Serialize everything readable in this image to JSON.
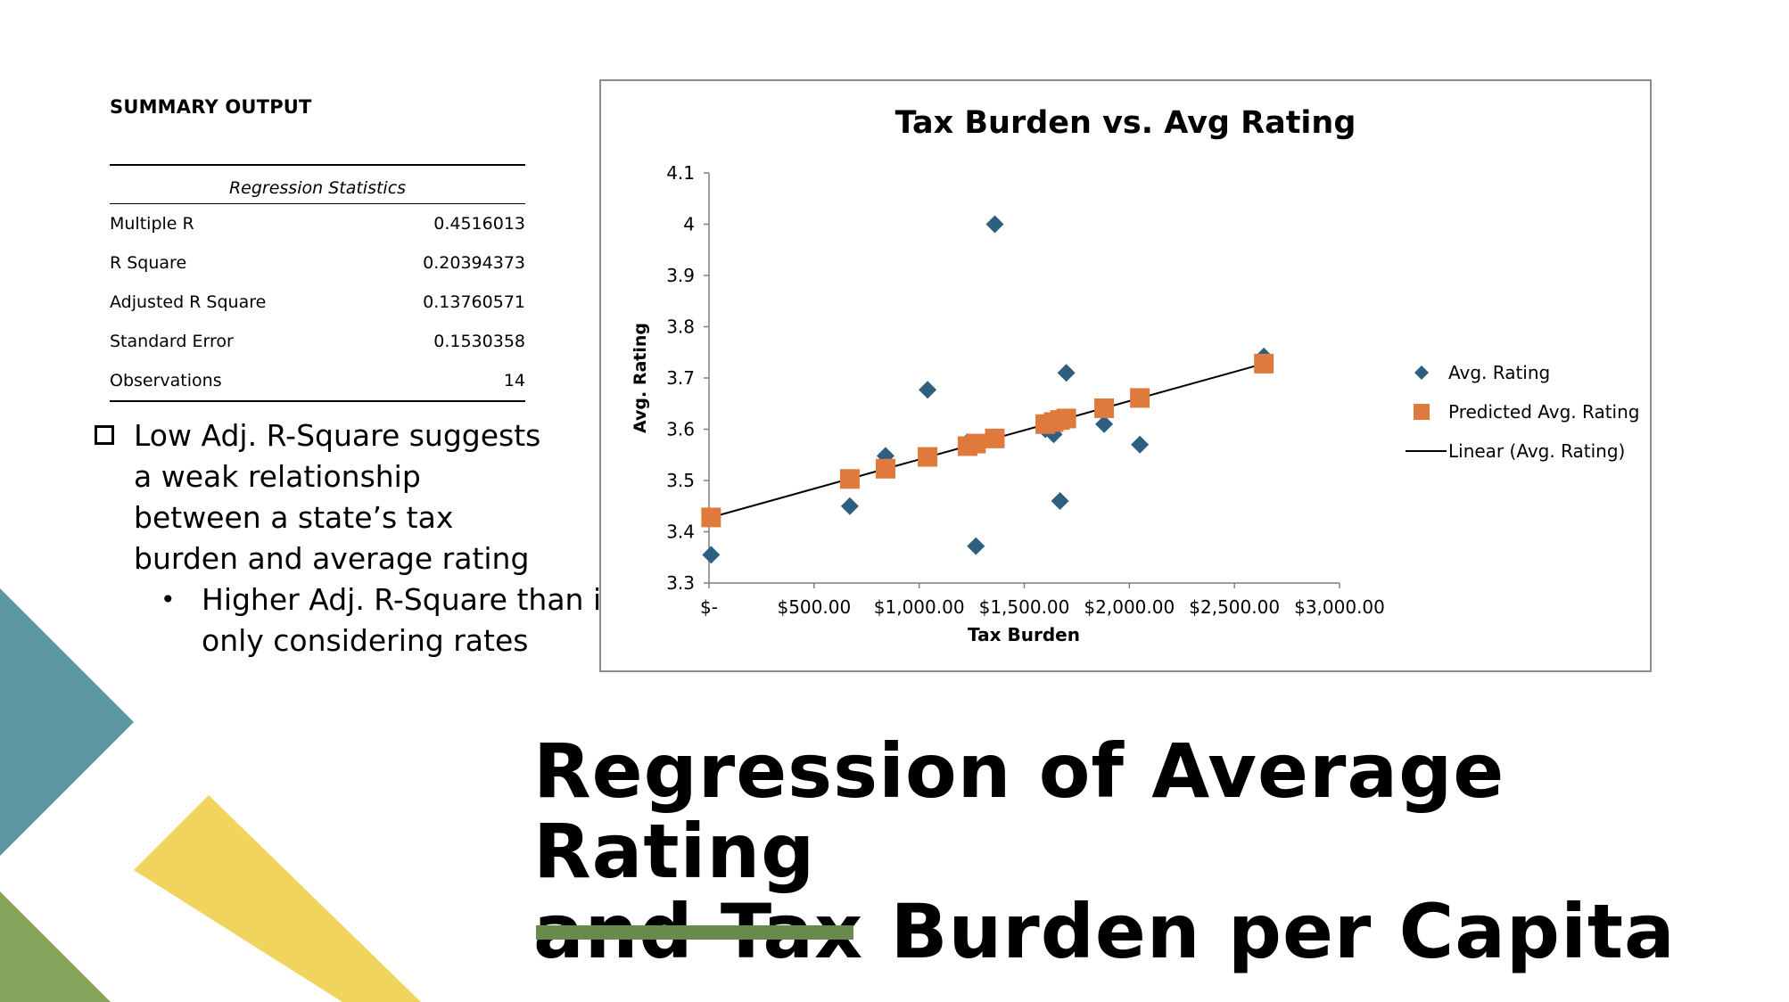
{
  "summary": {
    "title": "SUMMARY OUTPUT",
    "header": "Regression Statistics",
    "rows": [
      {
        "label": "Multiple R",
        "value": "0.4516013"
      },
      {
        "label": "R Square",
        "value": "0.20394373"
      },
      {
        "label": "Adjusted R Square",
        "value": "0.13760571"
      },
      {
        "label": "Standard Error",
        "value": "0.1530358"
      },
      {
        "label": "Observations",
        "value": "14"
      }
    ]
  },
  "bullets": {
    "main": "Low Adj. R-Square suggests a weak relationship between a state’s tax burden and average rating",
    "sub": "Higher Adj. R-Square than if only considering rates"
  },
  "slide_title": {
    "line1": "Regression of Average Rating",
    "line2": "and Tax Burden per Capita"
  },
  "colors": {
    "teal": "#5b96a1",
    "yellow": "#f0d45e",
    "green": "#86a35e",
    "accent_bar": "#6a8a4b",
    "series_avg": "#2e5f80",
    "series_pred": "#e07a3c",
    "trendline": "#000000"
  },
  "chart_data": {
    "type": "scatter",
    "title": "Tax Burden vs. Avg Rating",
    "xlabel": "Tax Burden",
    "ylabel": "Avg. Rating",
    "xlim": [
      0,
      3000
    ],
    "ylim": [
      3.3,
      4.1
    ],
    "x_ticks": [
      0,
      500,
      1000,
      1500,
      2000,
      2500,
      3000
    ],
    "x_tick_labels": [
      "$-",
      "$500.00",
      "$1,000.00",
      "$1,500.00",
      "$2,000.00",
      "$2,500.00",
      "$3,000.00"
    ],
    "y_ticks": [
      3.3,
      3.4,
      3.5,
      3.6,
      3.7,
      3.8,
      3.9,
      4.0,
      4.1
    ],
    "y_tick_labels": [
      "3.3",
      "3.4",
      "3.5",
      "3.6",
      "3.7",
      "3.8",
      "3.9",
      "4",
      "4.1"
    ],
    "legend_position": "right",
    "series": [
      {
        "name": "Avg. Rating",
        "marker": "diamond",
        "x": [
          10,
          670,
          840,
          1040,
          1230,
          1270,
          1360,
          1600,
          1640,
          1670,
          1700,
          1880,
          2050,
          2640
        ],
        "y": [
          3.355,
          3.45,
          3.548,
          3.677,
          3.575,
          3.372,
          4.0,
          3.6,
          3.59,
          3.46,
          3.71,
          3.61,
          3.57,
          3.742
        ]
      },
      {
        "name": "Predicted Avg. Rating",
        "marker": "square",
        "x": [
          10,
          670,
          840,
          1040,
          1230,
          1270,
          1360,
          1600,
          1640,
          1670,
          1700,
          1880,
          2050,
          2640
        ],
        "y": [
          3.428,
          3.503,
          3.523,
          3.546,
          3.567,
          3.572,
          3.582,
          3.61,
          3.614,
          3.618,
          3.621,
          3.641,
          3.661,
          3.728
        ]
      }
    ],
    "trendline": {
      "name": "Linear (Avg. Rating)",
      "x": [
        0,
        2640
      ],
      "y": [
        3.427,
        3.728
      ]
    }
  }
}
